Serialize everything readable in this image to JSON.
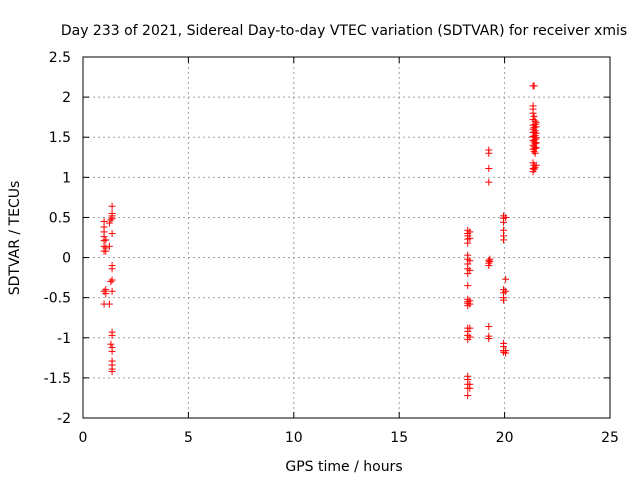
{
  "chart_data": {
    "type": "scatter",
    "title": "Day 233 of 2021, Sidereal Day-to-day VTEC variation (SDTVAR) for receiver xmis",
    "xlabel": "GPS time / hours",
    "ylabel": "SDTVAR / TECUs",
    "xlim": [
      0,
      25
    ],
    "ylim": [
      -2,
      2.5
    ],
    "xticks": [
      0,
      5,
      10,
      15,
      20,
      25
    ],
    "yticks": [
      -2,
      -1.5,
      -1,
      -0.5,
      0,
      0.5,
      1,
      1.5,
      2,
      2.5
    ],
    "xtick_labels": [
      "0",
      "5",
      "10",
      "15",
      "20",
      "25"
    ],
    "ytick_labels": [
      "-2",
      "-1.5",
      "-1",
      "-0.5",
      "0",
      "0.5",
      "1",
      "1.5",
      "2",
      "2.5"
    ],
    "grid": true,
    "marker": "+",
    "color": "#ff0000",
    "series": [
      {
        "name": "SDTVAR",
        "points": [
          [
            1.0,
            0.45
          ],
          [
            1.0,
            0.38
          ],
          [
            1.0,
            0.32
          ],
          [
            1.0,
            0.26
          ],
          [
            1.0,
            0.21
          ],
          [
            1.0,
            0.14
          ],
          [
            1.0,
            0.08
          ],
          [
            1.0,
            -0.42
          ],
          [
            1.0,
            -0.58
          ],
          [
            1.08,
            0.22
          ],
          [
            1.08,
            0.12
          ],
          [
            1.08,
            0.08
          ],
          [
            1.08,
            -0.4
          ],
          [
            1.08,
            -0.45
          ],
          [
            1.25,
            0.43
          ],
          [
            1.25,
            0.14
          ],
          [
            1.25,
            -0.58
          ],
          [
            1.38,
            0.64
          ],
          [
            1.38,
            0.55
          ],
          [
            1.38,
            0.52
          ],
          [
            1.38,
            0.49
          ],
          [
            1.38,
            0.3
          ],
          [
            1.38,
            -0.1
          ],
          [
            1.38,
            -0.14
          ],
          [
            1.38,
            -0.28
          ],
          [
            1.38,
            -0.42
          ],
          [
            1.38,
            -0.93
          ],
          [
            1.38,
            -0.97
          ],
          [
            1.38,
            -1.12
          ],
          [
            1.38,
            -1.17
          ],
          [
            1.38,
            -1.29
          ],
          [
            1.38,
            -1.34
          ],
          [
            1.38,
            -1.39
          ],
          [
            1.38,
            -1.42
          ],
          [
            1.32,
            -1.08
          ],
          [
            1.32,
            -0.3
          ],
          [
            1.32,
            0.47
          ],
          [
            18.25,
            0.34
          ],
          [
            18.25,
            0.3
          ],
          [
            18.25,
            0.27
          ],
          [
            18.25,
            0.23
          ],
          [
            18.25,
            0.18
          ],
          [
            18.25,
            0.03
          ],
          [
            18.25,
            -0.02
          ],
          [
            18.25,
            -0.08
          ],
          [
            18.25,
            -0.14
          ],
          [
            18.25,
            -0.2
          ],
          [
            18.25,
            -0.35
          ],
          [
            18.25,
            -0.52
          ],
          [
            18.25,
            -0.55
          ],
          [
            18.25,
            -0.57
          ],
          [
            18.25,
            -0.6
          ],
          [
            18.25,
            -0.88
          ],
          [
            18.25,
            -0.92
          ],
          [
            18.25,
            -0.97
          ],
          [
            18.25,
            -1.02
          ],
          [
            18.25,
            -1.48
          ],
          [
            18.25,
            -1.52
          ],
          [
            18.25,
            -1.58
          ],
          [
            18.25,
            -1.63
          ],
          [
            18.25,
            -1.72
          ],
          [
            18.35,
            0.32
          ],
          [
            18.35,
            0.24
          ],
          [
            18.35,
            -0.04
          ],
          [
            18.35,
            -0.16
          ],
          [
            18.35,
            -0.54
          ],
          [
            18.35,
            -0.58
          ],
          [
            18.35,
            -0.88
          ],
          [
            18.35,
            -0.99
          ],
          [
            18.35,
            -1.58
          ],
          [
            18.35,
            -1.63
          ],
          [
            19.25,
            1.34
          ],
          [
            19.25,
            1.3
          ],
          [
            19.25,
            1.11
          ],
          [
            19.25,
            0.94
          ],
          [
            19.25,
            -0.04
          ],
          [
            19.25,
            -0.07
          ],
          [
            19.25,
            -0.1
          ],
          [
            19.25,
            -0.86
          ],
          [
            19.25,
            -0.98
          ],
          [
            19.25,
            -1.01
          ],
          [
            19.3,
            -0.02
          ],
          [
            19.3,
            -0.05
          ],
          [
            19.95,
            0.52
          ],
          [
            19.95,
            0.49
          ],
          [
            19.95,
            0.44
          ],
          [
            19.95,
            0.34
          ],
          [
            19.95,
            0.27
          ],
          [
            19.95,
            0.22
          ],
          [
            19.95,
            -0.4
          ],
          [
            19.95,
            -0.44
          ],
          [
            19.95,
            -0.5
          ],
          [
            19.95,
            -0.53
          ],
          [
            19.95,
            -1.07
          ],
          [
            19.95,
            -1.11
          ],
          [
            19.95,
            -1.16
          ],
          [
            19.95,
            -1.18
          ],
          [
            20.05,
            0.5
          ],
          [
            20.05,
            -0.27
          ],
          [
            20.05,
            -0.42
          ],
          [
            20.05,
            -1.16
          ],
          [
            20.05,
            -1.19
          ],
          [
            21.35,
            2.14
          ],
          [
            21.35,
            1.89
          ],
          [
            21.35,
            1.85
          ],
          [
            21.35,
            1.8
          ],
          [
            21.35,
            1.72
          ],
          [
            21.35,
            1.65
          ],
          [
            21.35,
            1.6
          ],
          [
            21.35,
            1.56
          ],
          [
            21.35,
            1.51
          ],
          [
            21.35,
            1.46
          ],
          [
            21.35,
            1.4
          ],
          [
            21.35,
            1.35
          ],
          [
            21.35,
            1.18
          ],
          [
            21.35,
            1.11
          ],
          [
            21.35,
            1.07
          ],
          [
            21.4,
            2.14
          ],
          [
            21.4,
            1.76
          ],
          [
            21.4,
            1.62
          ],
          [
            21.4,
            1.56
          ],
          [
            21.4,
            1.5
          ],
          [
            21.4,
            1.44
          ],
          [
            21.4,
            1.38
          ],
          [
            21.4,
            1.32
          ],
          [
            21.4,
            1.15
          ],
          [
            21.4,
            1.1
          ],
          [
            21.45,
            1.7
          ],
          [
            21.45,
            1.66
          ],
          [
            21.45,
            1.58
          ],
          [
            21.45,
            1.52
          ],
          [
            21.45,
            1.47
          ],
          [
            21.45,
            1.42
          ],
          [
            21.45,
            1.36
          ],
          [
            21.45,
            1.3
          ],
          [
            21.45,
            1.12
          ],
          [
            21.5,
            1.68
          ],
          [
            21.5,
            1.63
          ],
          [
            21.5,
            1.55
          ],
          [
            21.5,
            1.49
          ],
          [
            21.5,
            1.43
          ],
          [
            21.5,
            1.37
          ],
          [
            21.5,
            1.15
          ]
        ]
      }
    ]
  }
}
